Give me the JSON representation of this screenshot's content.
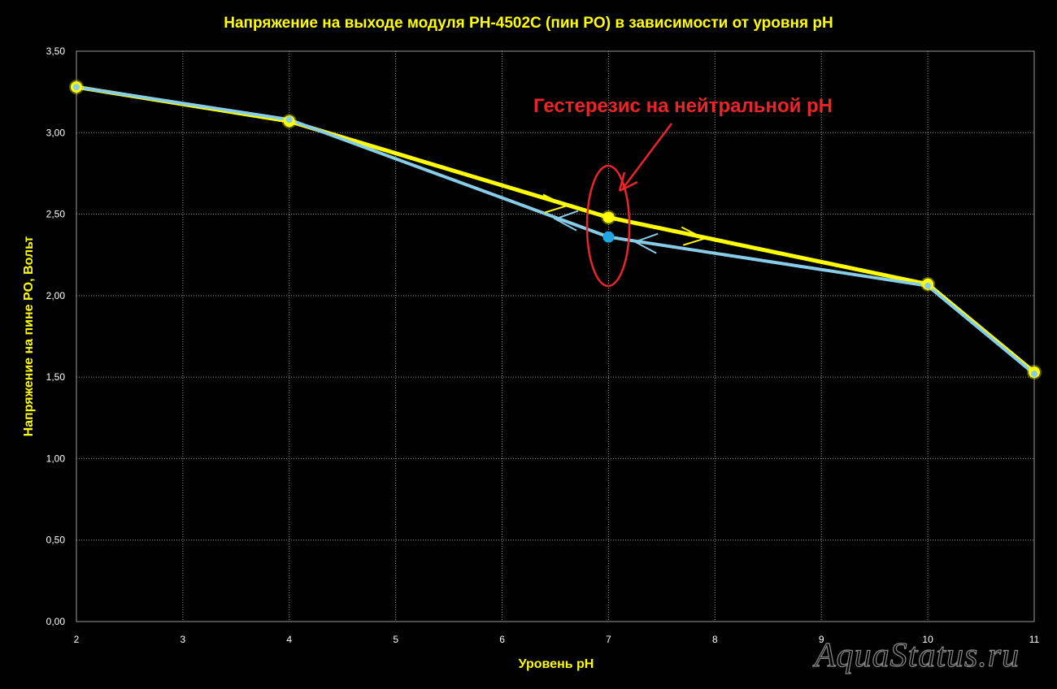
{
  "chart_data": {
    "type": "line",
    "title": "Напряжение на выходе модуля PH-4502C (пин PO) в зависимости от уровня  pH",
    "xlabel": "Уровень pH",
    "ylabel": "Напряжение на пине PO, Вольт",
    "x_ticks": [
      "2",
      "3",
      "4",
      "5",
      "6",
      "7",
      "8",
      "9",
      "10",
      "11"
    ],
    "y_ticks": [
      "0,00",
      "0,50",
      "1,00",
      "1,50",
      "2,00",
      "2,50",
      "3,00",
      "3,50"
    ],
    "xlim": [
      2,
      11
    ],
    "ylim": [
      0,
      3.5
    ],
    "grid": true,
    "series": [
      {
        "color": "#ffff00",
        "points": [
          [
            2,
            3.28
          ],
          [
            4,
            3.07
          ],
          [
            7,
            2.48
          ],
          [
            10,
            2.07
          ],
          [
            11,
            1.53
          ]
        ]
      },
      {
        "color": "#87cde8",
        "points": [
          [
            2,
            3.28
          ],
          [
            4,
            3.08
          ],
          [
            7,
            2.36
          ],
          [
            10,
            2.06
          ],
          [
            11,
            1.52
          ]
        ]
      }
    ],
    "annotations": [
      {
        "text": "Гестерезис на нейтральной pH",
        "color": "#e8262a"
      }
    ]
  },
  "watermark": "AquaStatus.ru"
}
